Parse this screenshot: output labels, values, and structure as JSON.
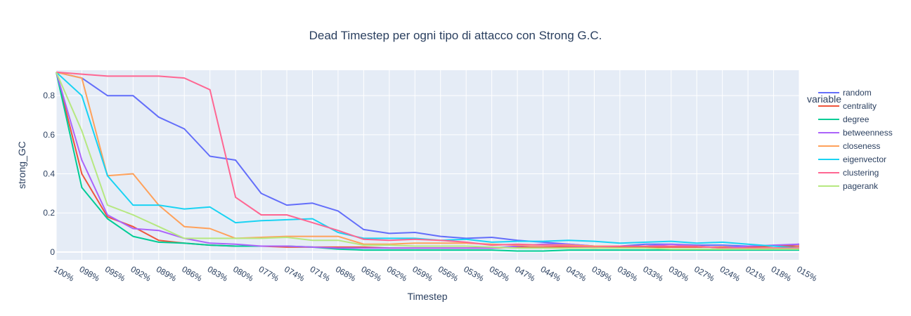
{
  "chart_data": {
    "type": "line",
    "title": "Dead Timestep per ogni tipo di attacco con Strong G.C.",
    "xlabel": "Timestep",
    "ylabel": "strong_GC",
    "ylim": [
      -0.04,
      0.93
    ],
    "y_ticks": [
      0,
      0.2,
      0.4,
      0.6,
      0.8
    ],
    "grid": true,
    "legend_title": "variable",
    "legend_position": "right",
    "categories": [
      "100%",
      "098%",
      "095%",
      "092%",
      "089%",
      "086%",
      "083%",
      "080%",
      "077%",
      "074%",
      "071%",
      "068%",
      "065%",
      "062%",
      "059%",
      "056%",
      "053%",
      "050%",
      "047%",
      "044%",
      "042%",
      "039%",
      "036%",
      "033%",
      "030%",
      "027%",
      "024%",
      "021%",
      "018%",
      "015%"
    ],
    "series": [
      {
        "name": "random",
        "color": "#636efa",
        "values": [
          0.92,
          0.89,
          0.8,
          0.8,
          0.69,
          0.63,
          0.49,
          0.47,
          0.3,
          0.24,
          0.25,
          0.21,
          0.115,
          0.095,
          0.1,
          0.08,
          0.07,
          0.075,
          0.06,
          0.05,
          0.04,
          0.03,
          0.03,
          0.04,
          0.04,
          0.035,
          0.035,
          0.03,
          0.03,
          0.04
        ]
      },
      {
        "name": "centrality",
        "color": "#ef553b",
        "values": [
          0.92,
          0.4,
          0.18,
          0.13,
          0.06,
          0.045,
          0.035,
          0.03,
          0.03,
          0.025,
          0.025,
          0.025,
          0.025,
          0.02,
          0.02,
          0.02,
          0.02,
          0.02,
          0.025,
          0.025,
          0.025,
          0.02,
          0.025,
          0.025,
          0.025,
          0.025,
          0.025,
          0.025,
          0.03,
          0.03
        ]
      },
      {
        "name": "degree",
        "color": "#00cc96",
        "values": [
          0.92,
          0.33,
          0.17,
          0.08,
          0.05,
          0.045,
          0.035,
          0.03,
          0.03,
          0.03,
          0.025,
          0.015,
          0.01,
          0.01,
          0.01,
          0.01,
          0.01,
          0.01,
          0.005,
          0.005,
          0.01,
          0.01,
          0.01,
          0.01,
          0.01,
          0.01,
          0.01,
          0.01,
          0.01,
          0.01
        ]
      },
      {
        "name": "betweenness",
        "color": "#ab63fa",
        "values": [
          0.92,
          0.47,
          0.19,
          0.12,
          0.11,
          0.07,
          0.045,
          0.04,
          0.03,
          0.03,
          0.025,
          0.02,
          0.02,
          0.02,
          0.02,
          0.02,
          0.02,
          0.02,
          0.03,
          0.04,
          0.04,
          0.03,
          0.03,
          0.03,
          0.04,
          0.03,
          0.02,
          0.03,
          0.035,
          0.04
        ]
      },
      {
        "name": "closeness",
        "color": "#ffa15a",
        "values": [
          0.92,
          0.89,
          0.39,
          0.4,
          0.24,
          0.13,
          0.12,
          0.07,
          0.075,
          0.08,
          0.08,
          0.08,
          0.04,
          0.04,
          0.045,
          0.045,
          0.045,
          0.04,
          0.035,
          0.035,
          0.035,
          0.03,
          0.03,
          0.03,
          0.03,
          0.03,
          0.02,
          0.02,
          0.02,
          0.02
        ]
      },
      {
        "name": "eigenvector",
        "color": "#19d3f3",
        "values": [
          0.92,
          0.8,
          0.39,
          0.24,
          0.24,
          0.22,
          0.23,
          0.15,
          0.16,
          0.165,
          0.17,
          0.1,
          0.07,
          0.07,
          0.07,
          0.06,
          0.065,
          0.05,
          0.055,
          0.055,
          0.06,
          0.055,
          0.045,
          0.05,
          0.055,
          0.045,
          0.05,
          0.04,
          0.03,
          0.02
        ]
      },
      {
        "name": "clustering",
        "color": "#ff6692",
        "values": [
          0.92,
          0.91,
          0.9,
          0.9,
          0.9,
          0.89,
          0.83,
          0.28,
          0.19,
          0.19,
          0.15,
          0.11,
          0.065,
          0.06,
          0.065,
          0.06,
          0.05,
          0.035,
          0.04,
          0.035,
          0.03,
          0.025,
          0.03,
          0.03,
          0.03,
          0.03,
          0.02,
          0.02,
          0.02,
          0.02
        ]
      },
      {
        "name": "pagerank",
        "color": "#b6e880",
        "values": [
          0.92,
          0.62,
          0.24,
          0.19,
          0.13,
          0.07,
          0.07,
          0.07,
          0.07,
          0.075,
          0.06,
          0.06,
          0.035,
          0.035,
          0.03,
          0.03,
          0.03,
          0.025,
          0.02,
          0.02,
          0.02,
          0.02,
          0.02,
          0.02,
          0.015,
          0.015,
          0.015,
          0.015,
          0.015,
          0.015
        ]
      }
    ]
  }
}
